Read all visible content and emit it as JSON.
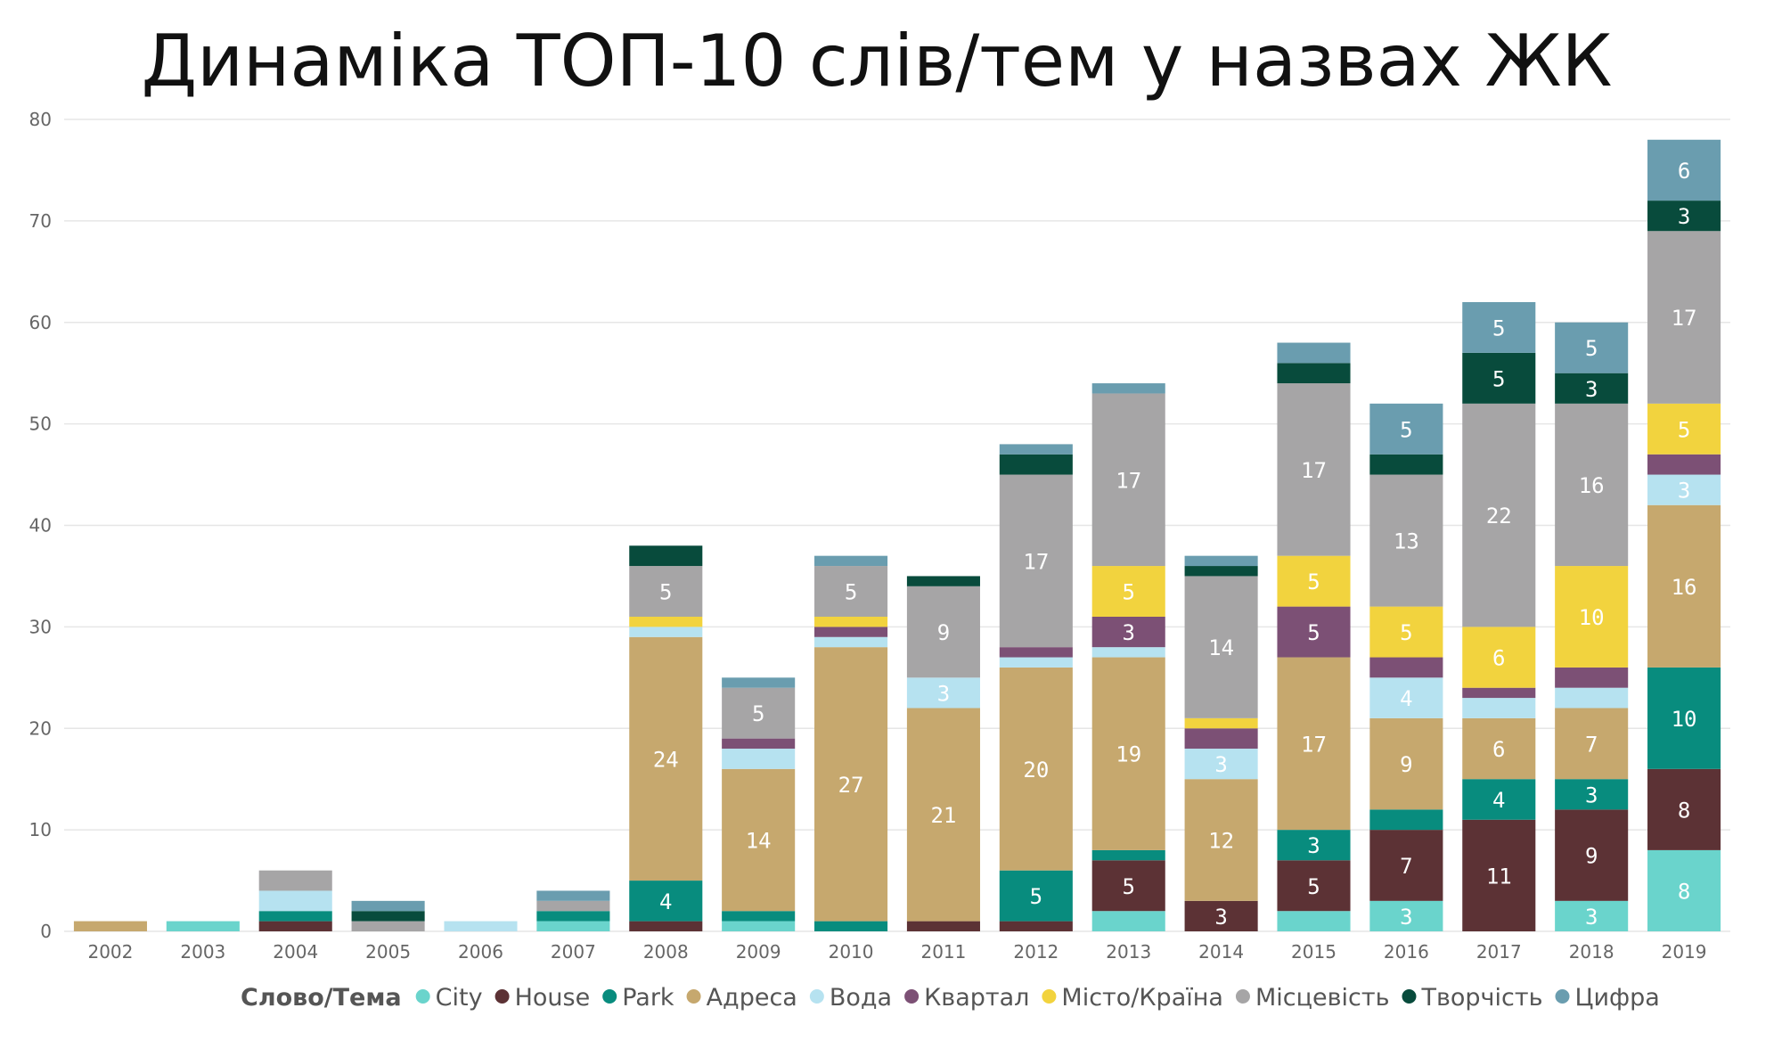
{
  "chart_data": {
    "type": "bar",
    "stacked": true,
    "title": "Динаміка ТОП-10 слів/тем у назвах ЖК",
    "xlabel": "",
    "ylabel": "",
    "ylim": [
      0,
      80
    ],
    "yticks": [
      0,
      10,
      20,
      30,
      40,
      50,
      60,
      70,
      80
    ],
    "grid": true,
    "legend_title": "Слово/Тема",
    "legend_position": "bottom",
    "categories": [
      "2002",
      "2003",
      "2004",
      "2005",
      "2006",
      "2007",
      "2008",
      "2009",
      "2010",
      "2011",
      "2012",
      "2013",
      "2014",
      "2015",
      "2016",
      "2017",
      "2018",
      "2019"
    ],
    "series": [
      {
        "name": "City",
        "color": "#6ad4cc",
        "values": [
          0,
          1,
          0,
          0,
          0,
          1,
          0,
          1,
          0,
          0,
          0,
          2,
          0,
          2,
          3,
          0,
          3,
          8
        ]
      },
      {
        "name": "House",
        "color": "#5c3235",
        "values": [
          0,
          0,
          1,
          0,
          0,
          0,
          1,
          0,
          0,
          1,
          1,
          5,
          3,
          5,
          7,
          11,
          9,
          8
        ]
      },
      {
        "name": "Park",
        "color": "#088c7e",
        "values": [
          0,
          0,
          1,
          0,
          0,
          1,
          4,
          1,
          1,
          0,
          5,
          1,
          0,
          3,
          2,
          4,
          3,
          10
        ]
      },
      {
        "name": "Адреса",
        "color": "#c6a86e",
        "values": [
          1,
          0,
          0,
          0,
          0,
          0,
          24,
          14,
          27,
          21,
          20,
          19,
          12,
          17,
          9,
          6,
          7,
          16
        ]
      },
      {
        "name": "Вода",
        "color": "#b6e2f0",
        "values": [
          0,
          0,
          2,
          0,
          1,
          0,
          1,
          2,
          1,
          3,
          1,
          1,
          3,
          0,
          4,
          2,
          2,
          3
        ]
      },
      {
        "name": "Квартал",
        "color": "#7c5075",
        "values": [
          0,
          0,
          0,
          0,
          0,
          0,
          0,
          1,
          1,
          0,
          1,
          3,
          2,
          5,
          2,
          1,
          2,
          2
        ]
      },
      {
        "name": "Місто/Країна",
        "color": "#f2d33e",
        "values": [
          0,
          0,
          0,
          0,
          0,
          0,
          1,
          0,
          1,
          0,
          0,
          5,
          1,
          5,
          5,
          6,
          10,
          5
        ]
      },
      {
        "name": "Місцевість",
        "color": "#a6a5a6",
        "values": [
          0,
          0,
          2,
          1,
          0,
          1,
          5,
          5,
          5,
          9,
          17,
          17,
          14,
          17,
          13,
          22,
          16,
          17
        ]
      },
      {
        "name": "Творчість",
        "color": "#084b3c",
        "values": [
          0,
          0,
          0,
          1,
          0,
          0,
          2,
          0,
          0,
          1,
          2,
          0,
          1,
          2,
          2,
          5,
          3,
          3
        ]
      },
      {
        "name": "Цифра",
        "color": "#6a9daf",
        "values": [
          0,
          0,
          0,
          1,
          0,
          1,
          0,
          1,
          1,
          0,
          1,
          1,
          1,
          2,
          5,
          5,
          5,
          6
        ]
      }
    ]
  }
}
